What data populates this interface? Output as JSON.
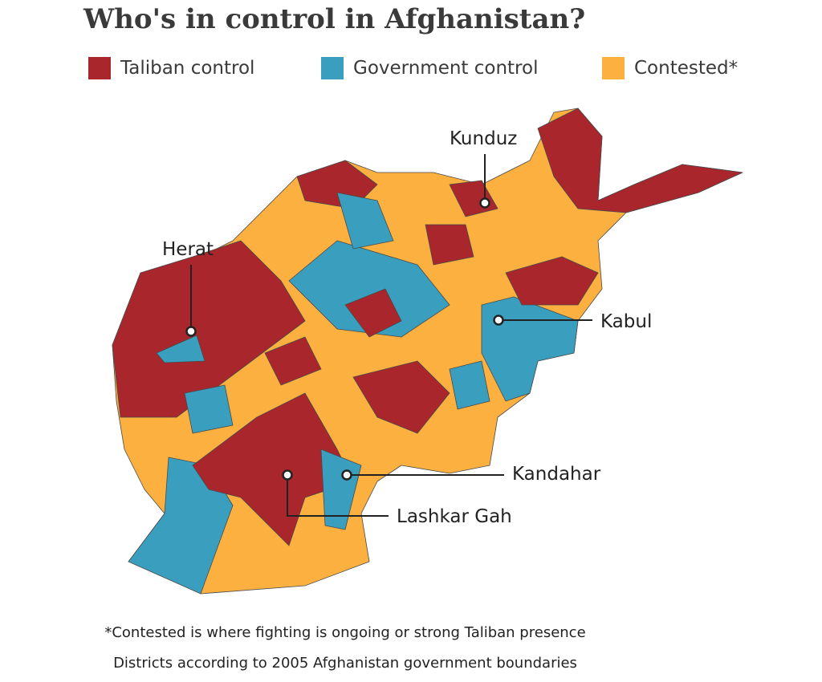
{
  "title": "Who's in control in Afghanistan?",
  "legend": [
    {
      "label": "Taliban control",
      "color": "#a8262c"
    },
    {
      "label": "Government control",
      "color": "#3a9fbf"
    },
    {
      "label": "Contested*",
      "color": "#fbb040"
    }
  ],
  "cities": [
    {
      "name": "Herat"
    },
    {
      "name": "Kunduz"
    },
    {
      "name": "Kabul"
    },
    {
      "name": "Kandahar"
    },
    {
      "name": "Lashkar Gah"
    }
  ],
  "notes": [
    "*Contested is where fighting is ongoing or strong Taliban presence",
    "Districts according to 2005 Afghanistan government boundaries"
  ]
}
